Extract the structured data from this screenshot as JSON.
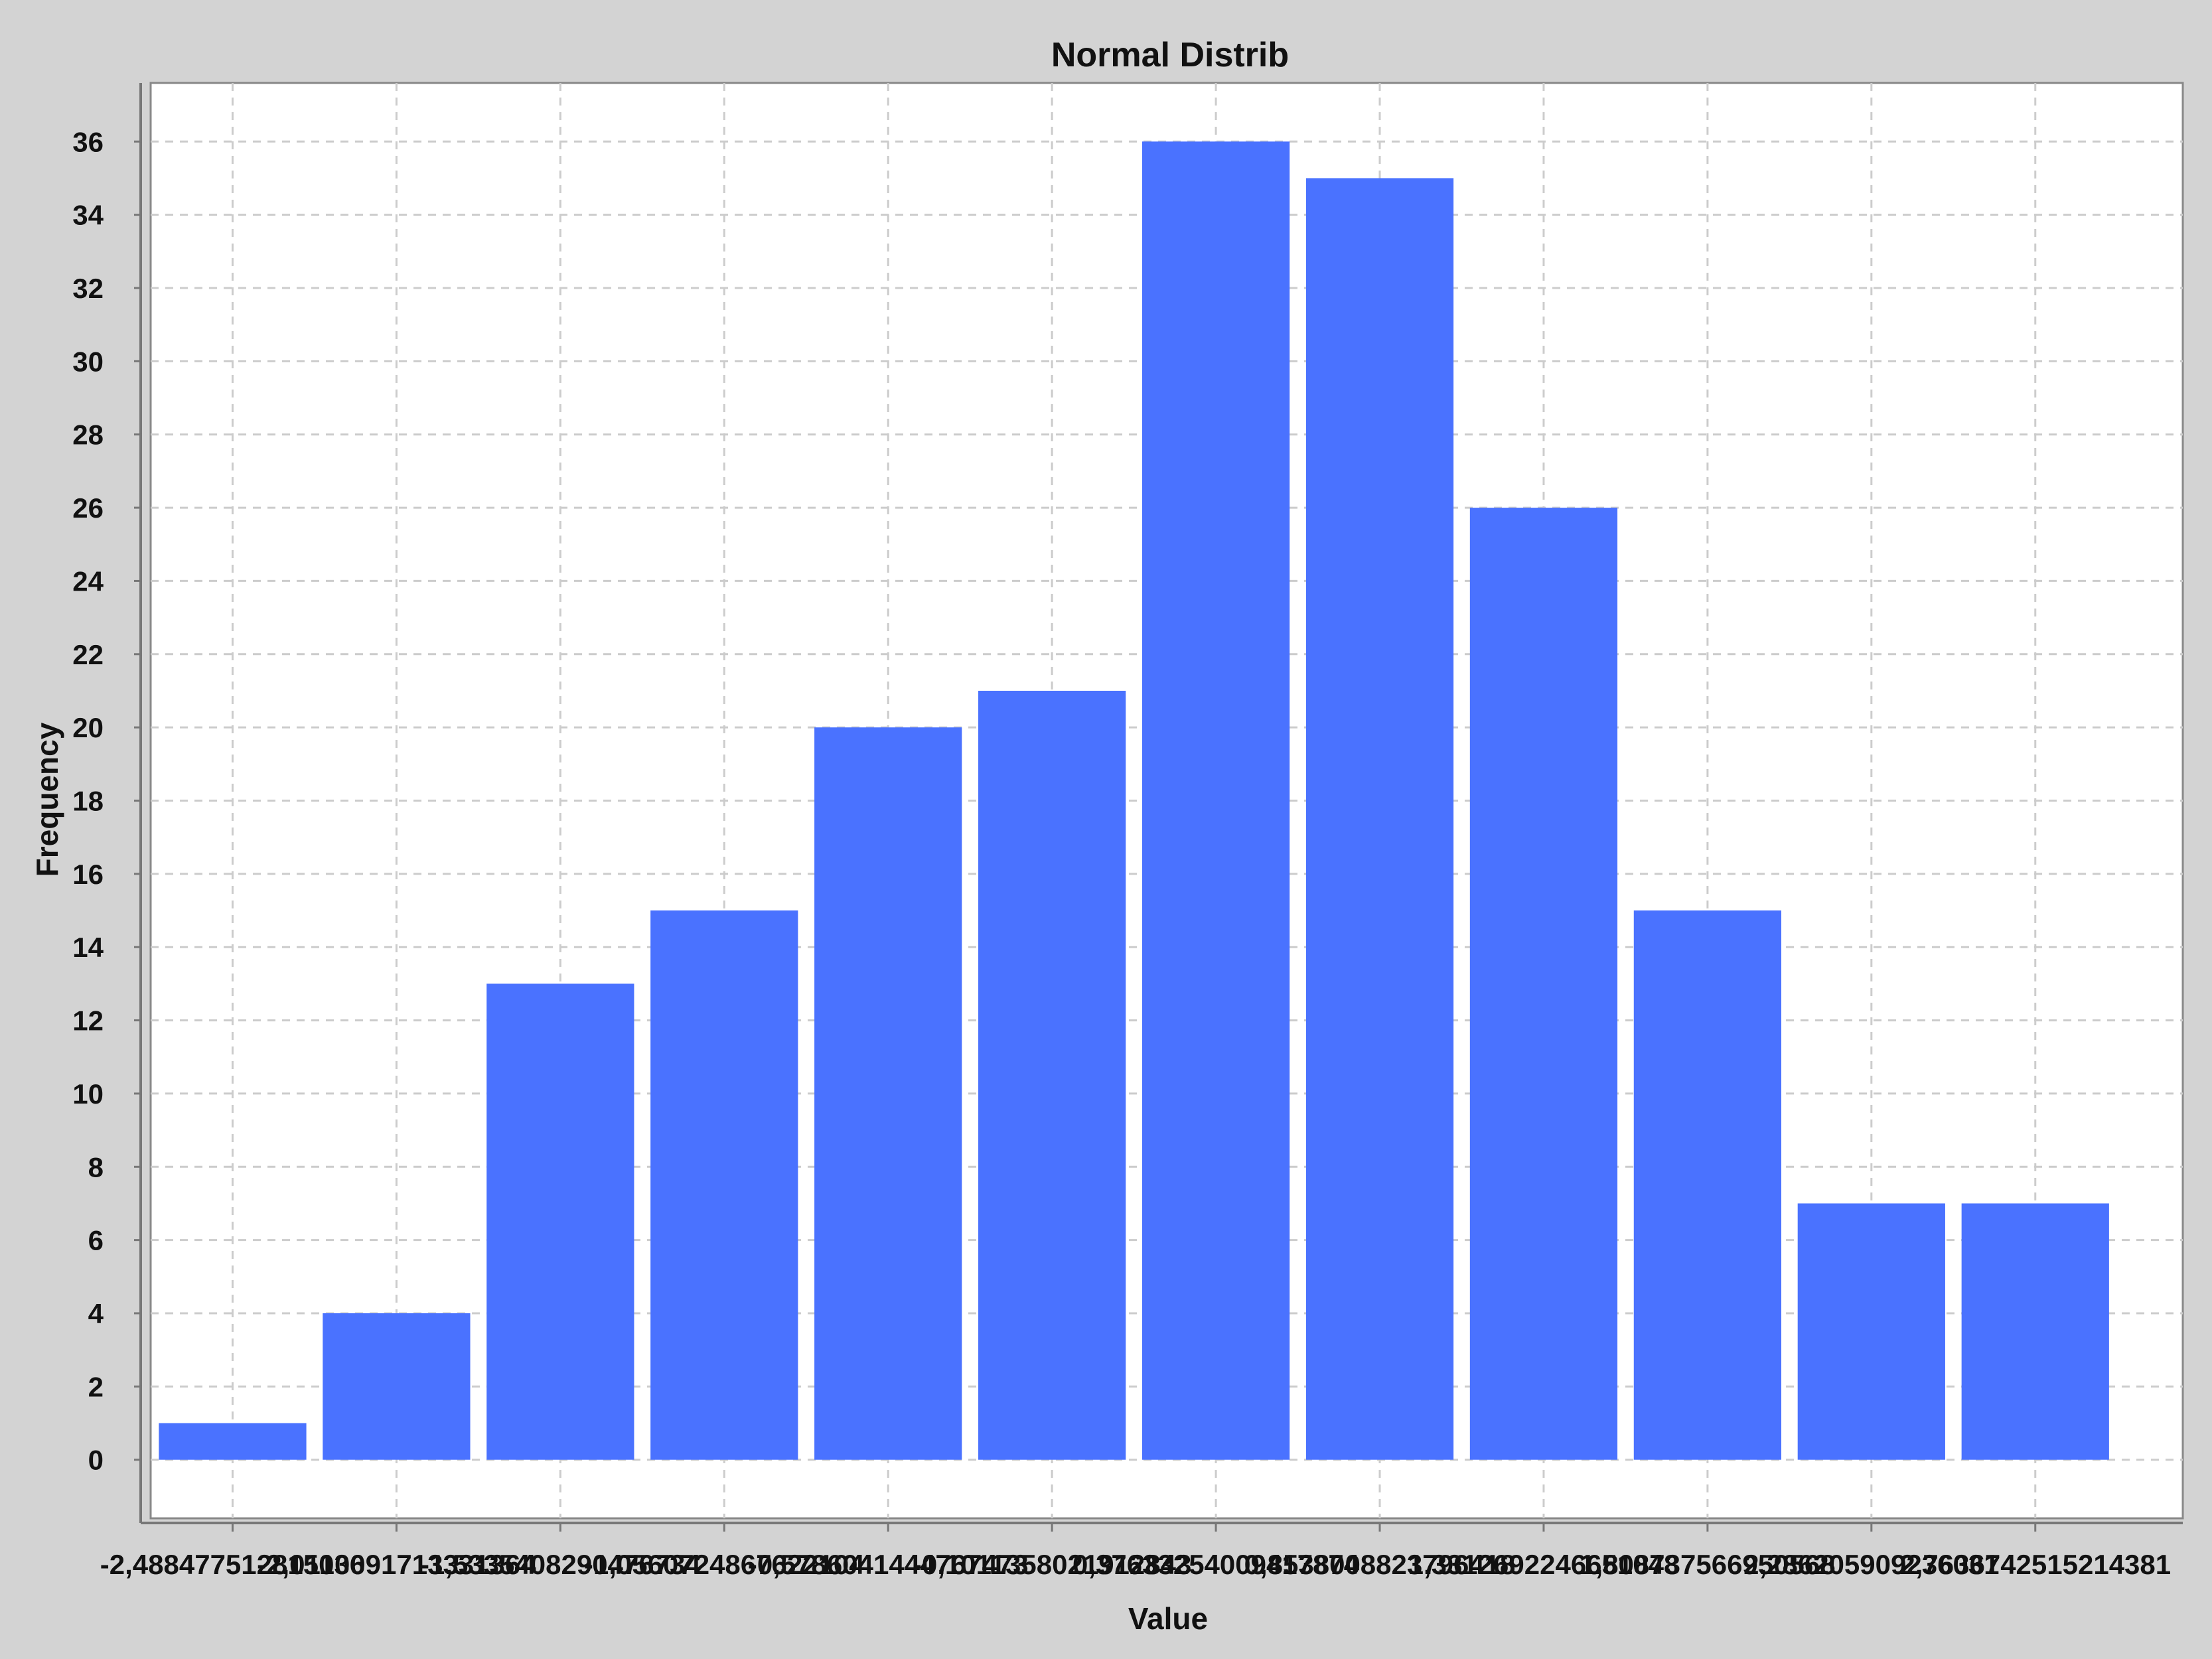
{
  "chart_data": {
    "type": "bar",
    "title": "Normal Distrib",
    "xlabel": "Value",
    "ylabel": "Frequency",
    "categories": [
      "-2,488477512815036",
      "-2,0110091713331364",
      "-1,5335408290476734",
      "-1,0560724867622104",
      "-0,5786041444767473",
      "-0,1011358021912843",
      "0,37633254009417874",
      "0,8538008823796418",
      "1,3312692246651048",
      "1,808737566950568",
      "2,286205909236031",
      "2,763674251521494"
    ],
    "tick_labels": [
      "-2,488477512815036",
      "-2,0110091713331364",
      "-1,5335408290476734",
      "-1,0560724867622104",
      "-0,5786041444767473",
      "-0,1011358021912843",
      "0,37633254009417874",
      "0,8538008823796418",
      "1,3312692246651048",
      "1,808737566950568",
      "2,286205909236031",
      "2,7636742515214381"
    ],
    "values": [
      1,
      4,
      13,
      15,
      20,
      21,
      36,
      35,
      26,
      15,
      7,
      7
    ],
    "ylim": [
      -1.6,
      37.6
    ],
    "yticks": [
      0,
      2,
      4,
      6,
      8,
      10,
      12,
      14,
      16,
      18,
      20,
      22,
      24,
      26,
      28,
      30,
      32,
      34,
      36
    ],
    "grid": true,
    "legend": "none",
    "bar_color": "#4a72ff",
    "plot_background": "#ffffff",
    "page_background": "#d3d3d3"
  }
}
